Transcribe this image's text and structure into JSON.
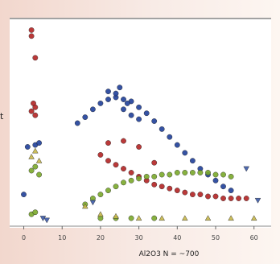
{
  "edge_text": "t",
  "chart_data": {
    "type": "scatter",
    "xlabel": "Al2O3   N = ~700",
    "ylabel": "",
    "title": "",
    "xlim": [
      -2,
      63
    ],
    "ylim": [
      0,
      1
    ],
    "xticks": [
      0,
      10,
      20,
      30,
      40,
      50,
      60
    ],
    "grid": "horizontal top line only",
    "legend": "none",
    "series": [
      {
        "color": "#1f3f99",
        "marker": "circle",
        "x": [
          0,
          1,
          3,
          4,
          14,
          16,
          18,
          20,
          22,
          24,
          26,
          28,
          30,
          32,
          34,
          36,
          38,
          40,
          42,
          44,
          46,
          48,
          50,
          52,
          54,
          22,
          24,
          26,
          28,
          30,
          25,
          27
        ],
        "y": [
          0.14,
          0.38,
          0.39,
          0.4,
          0.5,
          0.53,
          0.57,
          0.6,
          0.62,
          0.63,
          0.62,
          0.61,
          0.58,
          0.55,
          0.51,
          0.47,
          0.43,
          0.39,
          0.35,
          0.31,
          0.27,
          0.24,
          0.21,
          0.18,
          0.16,
          0.66,
          0.65,
          0.57,
          0.54,
          0.52,
          0.68,
          0.6
        ]
      },
      {
        "color": "#b32424",
        "marker": "circle",
        "x": [
          2,
          2,
          3,
          2.5,
          3,
          2,
          3,
          20,
          22,
          24,
          26,
          28,
          30,
          32,
          34,
          36,
          38,
          40,
          42,
          44,
          46,
          48,
          50,
          52,
          54,
          56,
          58,
          22,
          26,
          30,
          34
        ],
        "y": [
          0.97,
          0.94,
          0.83,
          0.6,
          0.58,
          0.56,
          0.54,
          0.34,
          0.31,
          0.29,
          0.27,
          0.25,
          0.23,
          0.21,
          0.19,
          0.18,
          0.17,
          0.16,
          0.15,
          0.14,
          0.14,
          0.13,
          0.13,
          0.12,
          0.12,
          0.12,
          0.12,
          0.4,
          0.41,
          0.38,
          0.3
        ]
      },
      {
        "color": "#7aa82a",
        "marker": "circle",
        "x": [
          2,
          3,
          4,
          2,
          3,
          16,
          18,
          20,
          22,
          24,
          26,
          28,
          30,
          32,
          34,
          36,
          38,
          40,
          42,
          44,
          46,
          48,
          50,
          52,
          54,
          20,
          24,
          28,
          34
        ],
        "y": [
          0.26,
          0.28,
          0.24,
          0.04,
          0.05,
          0.09,
          0.12,
          0.14,
          0.16,
          0.18,
          0.2,
          0.21,
          0.22,
          0.23,
          0.23,
          0.24,
          0.24,
          0.25,
          0.25,
          0.25,
          0.25,
          0.25,
          0.24,
          0.24,
          0.23,
          0.02,
          0.02,
          0.02,
          0.02
        ]
      },
      {
        "color": "#c8b84a",
        "marker": "triangle",
        "x": [
          3,
          2,
          4,
          16,
          20,
          24,
          30,
          36,
          42,
          48,
          54,
          60
        ],
        "y": [
          0.36,
          0.33,
          0.31,
          0.08,
          0.04,
          0.03,
          0.02,
          0.02,
          0.02,
          0.02,
          0.02,
          0.02
        ]
      },
      {
        "color": "#3c5aa8",
        "marker": "triangle-down",
        "x": [
          5,
          6,
          18,
          58,
          61
        ],
        "y": [
          0.02,
          0.01,
          0.1,
          0.27,
          0.11
        ]
      }
    ]
  }
}
